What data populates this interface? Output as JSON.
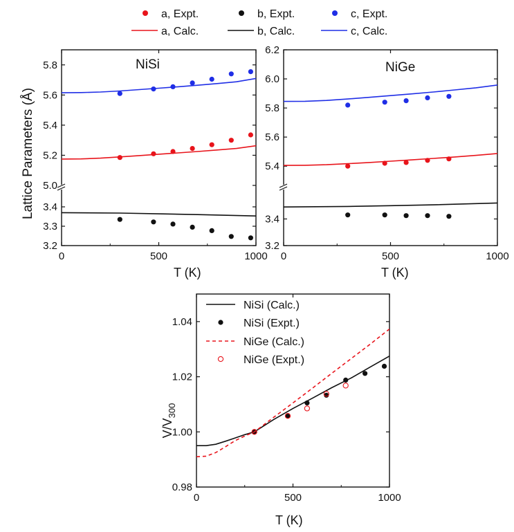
{
  "legend_top": [
    {
      "label": "a, Expt.",
      "kind": "dot",
      "color": "#e8141b"
    },
    {
      "label": "b, Expt.",
      "kind": "dot",
      "color": "#111111"
    },
    {
      "label": "c, Expt.",
      "kind": "dot",
      "color": "#1f2ee6"
    },
    {
      "label": "a, Calc.",
      "kind": "line",
      "color": "#e8141b"
    },
    {
      "label": "b, Calc.",
      "kind": "line",
      "color": "#111111"
    },
    {
      "label": "c, Calc.",
      "kind": "line",
      "color": "#1f2ee6"
    }
  ],
  "shared_ylabel": "Lattice Parameters (Å)",
  "chart_data": [
    {
      "type": "line",
      "title": "NiSi",
      "xlabel": "T (K)",
      "ylabel": "Lattice Parameters (Å)",
      "xlim": [
        0,
        1000
      ],
      "xticks": [
        0,
        500,
        1000
      ],
      "broken_y": true,
      "ylim_upper": [
        5.0,
        5.9
      ],
      "yticks_upper": [
        "5.0",
        "5.2",
        "5.4",
        "5.6",
        "5.8"
      ],
      "ylim_lower": [
        3.2,
        3.45
      ],
      "yticks_lower": [
        "3.2",
        "3.3",
        "3.4"
      ],
      "series": [
        {
          "name": "a, Calc.",
          "kind": "line",
          "color": "#e8141b",
          "x": [
            0,
            100,
            200,
            300,
            400,
            500,
            600,
            700,
            800,
            900,
            1000
          ],
          "y": [
            5.175,
            5.176,
            5.181,
            5.189,
            5.198,
            5.207,
            5.216,
            5.225,
            5.235,
            5.245,
            5.263
          ]
        },
        {
          "name": "b, Calc.",
          "kind": "line",
          "color": "#111111",
          "x": [
            0,
            300,
            500,
            700,
            1000
          ],
          "y": [
            3.37,
            3.368,
            3.364,
            3.36,
            3.353
          ]
        },
        {
          "name": "c, Calc.",
          "kind": "line",
          "color": "#1f2ee6",
          "x": [
            0,
            100,
            200,
            300,
            400,
            500,
            600,
            700,
            800,
            900,
            1000
          ],
          "y": [
            5.615,
            5.616,
            5.62,
            5.627,
            5.636,
            5.645,
            5.655,
            5.665,
            5.676,
            5.688,
            5.71
          ]
        },
        {
          "name": "a, Expt.",
          "kind": "dot",
          "color": "#e8141b",
          "x": [
            300,
            473,
            573,
            673,
            773,
            873,
            973
          ],
          "y": [
            5.185,
            5.21,
            5.225,
            5.245,
            5.27,
            5.3,
            5.335
          ]
        },
        {
          "name": "b, Expt.",
          "kind": "dot",
          "color": "#111111",
          "x": [
            300,
            473,
            573,
            673,
            773,
            873,
            973
          ],
          "y": [
            3.335,
            3.322,
            3.311,
            3.295,
            3.277,
            3.247,
            3.24
          ]
        },
        {
          "name": "c, Expt.",
          "kind": "dot",
          "color": "#1f2ee6",
          "x": [
            300,
            473,
            573,
            673,
            773,
            873,
            973
          ],
          "y": [
            5.61,
            5.64,
            5.655,
            5.68,
            5.705,
            5.74,
            5.755
          ]
        }
      ]
    },
    {
      "type": "line",
      "title": "NiGe",
      "xlabel": "T (K)",
      "ylabel": "",
      "xlim": [
        0,
        1000
      ],
      "xticks": [
        0,
        500,
        1000
      ],
      "broken_y": true,
      "ylim_upper": [
        5.32,
        6.2
      ],
      "yticks_upper": [
        "5.4",
        "5.6",
        "5.8",
        "6.0",
        "6.2"
      ],
      "ylim_lower": [
        3.2,
        3.6
      ],
      "yticks_lower": [
        "3.2",
        "3.4"
      ],
      "series": [
        {
          "name": "a, Calc.",
          "kind": "line",
          "color": "#e8141b",
          "x": [
            0,
            100,
            200,
            300,
            400,
            500,
            600,
            700,
            800,
            900,
            1000
          ],
          "y": [
            5.405,
            5.406,
            5.41,
            5.417,
            5.425,
            5.434,
            5.443,
            5.453,
            5.463,
            5.474,
            5.487
          ]
        },
        {
          "name": "b, Calc.",
          "kind": "line",
          "color": "#111111",
          "x": [
            0,
            300,
            500,
            700,
            1000
          ],
          "y": [
            3.49,
            3.494,
            3.5,
            3.506,
            3.52
          ]
        },
        {
          "name": "c, Calc.",
          "kind": "line",
          "color": "#1f2ee6",
          "x": [
            0,
            100,
            200,
            300,
            400,
            500,
            600,
            700,
            800,
            900,
            1000
          ],
          "y": [
            5.845,
            5.846,
            5.852,
            5.862,
            5.873,
            5.885,
            5.897,
            5.91,
            5.924,
            5.939,
            5.958
          ]
        },
        {
          "name": "a, Expt.",
          "kind": "dot",
          "color": "#e8141b",
          "x": [
            300,
            473,
            573,
            673,
            773
          ],
          "y": [
            5.4,
            5.42,
            5.425,
            5.44,
            5.45
          ]
        },
        {
          "name": "b, Expt.",
          "kind": "dot",
          "color": "#111111",
          "x": [
            300,
            473,
            573,
            673,
            773
          ],
          "y": [
            3.43,
            3.43,
            3.425,
            3.425,
            3.42
          ]
        },
        {
          "name": "c, Expt.",
          "kind": "dot",
          "color": "#1f2ee6",
          "x": [
            300,
            473,
            573,
            673,
            773
          ],
          "y": [
            5.82,
            5.84,
            5.85,
            5.87,
            5.88
          ]
        }
      ]
    },
    {
      "type": "line",
      "title": "",
      "xlabel": "T (K)",
      "ylabel_main": "V/V",
      "ylabel_sub": "300",
      "xlim": [
        0,
        1000
      ],
      "xticks": [
        0,
        500,
        1000
      ],
      "ylim": [
        0.98,
        1.05
      ],
      "yticks": [
        "0.98",
        "1.00",
        "1.02",
        "1.04"
      ],
      "series": [
        {
          "name": "NiSi (Calc.)",
          "kind": "line",
          "color": "#111111",
          "x": [
            0,
            50,
            100,
            150,
            200,
            250,
            300,
            400,
            500,
            600,
            700,
            800,
            900,
            1000
          ],
          "y": [
            0.995,
            0.995,
            0.9955,
            0.9966,
            0.9978,
            0.999,
            1.0,
            1.0045,
            1.0085,
            1.0122,
            1.016,
            1.0195,
            1.0235,
            1.0275
          ]
        },
        {
          "name": "NiSi (Expt.)",
          "kind": "dot",
          "color": "#111111",
          "x": [
            300,
            473,
            573,
            673,
            773,
            873,
            973
          ],
          "y": [
            1.0,
            1.0058,
            1.0105,
            1.0133,
            1.0188,
            1.0212,
            1.0238
          ]
        },
        {
          "name": "NiGe (Calc.)",
          "kind": "dash",
          "color": "#e8141b",
          "x": [
            0,
            50,
            100,
            150,
            200,
            250,
            300,
            400,
            500,
            600,
            700,
            800,
            900,
            1000
          ],
          "y": [
            0.991,
            0.9912,
            0.9925,
            0.9946,
            0.9968,
            0.9985,
            1.0,
            1.0053,
            1.0105,
            1.0158,
            1.0212,
            1.0265,
            1.0318,
            1.0373
          ]
        },
        {
          "name": "NiGe (Expt.)",
          "kind": "ring",
          "color": "#e8141b",
          "x": [
            300,
            473,
            573,
            673,
            773
          ],
          "y": [
            1.0,
            1.0058,
            1.0085,
            1.0138,
            1.0168
          ]
        }
      ]
    }
  ]
}
